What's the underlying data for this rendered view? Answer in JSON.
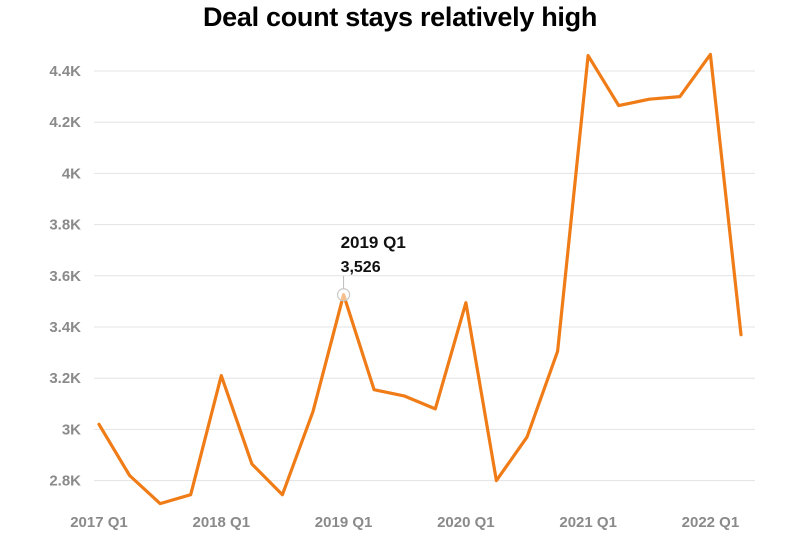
{
  "chart_data": {
    "type": "line",
    "title": "Deal count stays relatively high",
    "xlabel": "",
    "ylabel": "",
    "categories": [
      "2017 Q1",
      "2017 Q2",
      "2017 Q3",
      "2017 Q4",
      "2018 Q1",
      "2018 Q2",
      "2018 Q3",
      "2018 Q4",
      "2019 Q1",
      "2019 Q2",
      "2019 Q3",
      "2019 Q4",
      "2020 Q1",
      "2020 Q2",
      "2020 Q3",
      "2020 Q4",
      "2021 Q1",
      "2021 Q2",
      "2021 Q3",
      "2021 Q4",
      "2022 Q1",
      "2022 Q2"
    ],
    "x_tick_labels": [
      "2017 Q1",
      "2018 Q1",
      "2019 Q1",
      "2020 Q1",
      "2021 Q1",
      "2022 Q1"
    ],
    "series": [
      {
        "values": [
          3020,
          2820,
          2710,
          2745,
          3210,
          2865,
          2745,
          3070,
          3526,
          3155,
          3130,
          3080,
          3495,
          2800,
          2970,
          3305,
          4460,
          4265,
          4290,
          4300,
          4465,
          3370
        ],
        "color": "#f07c17"
      }
    ],
    "y_ticks": [
      2800,
      3000,
      3200,
      3400,
      3600,
      3800,
      4000,
      4200,
      4400
    ],
    "y_tick_labels": [
      "2.8K",
      "3K",
      "3.2K",
      "3.4K",
      "3.6K",
      "3.8K",
      "4K",
      "4.2K",
      "4.4K"
    ],
    "ylim": [
      2710,
      4520
    ],
    "grid": true,
    "legend": "none",
    "tooltip": {
      "category": "2019 Q1",
      "index": 8,
      "title": "2019 Q1",
      "value_label": "3,526"
    }
  }
}
